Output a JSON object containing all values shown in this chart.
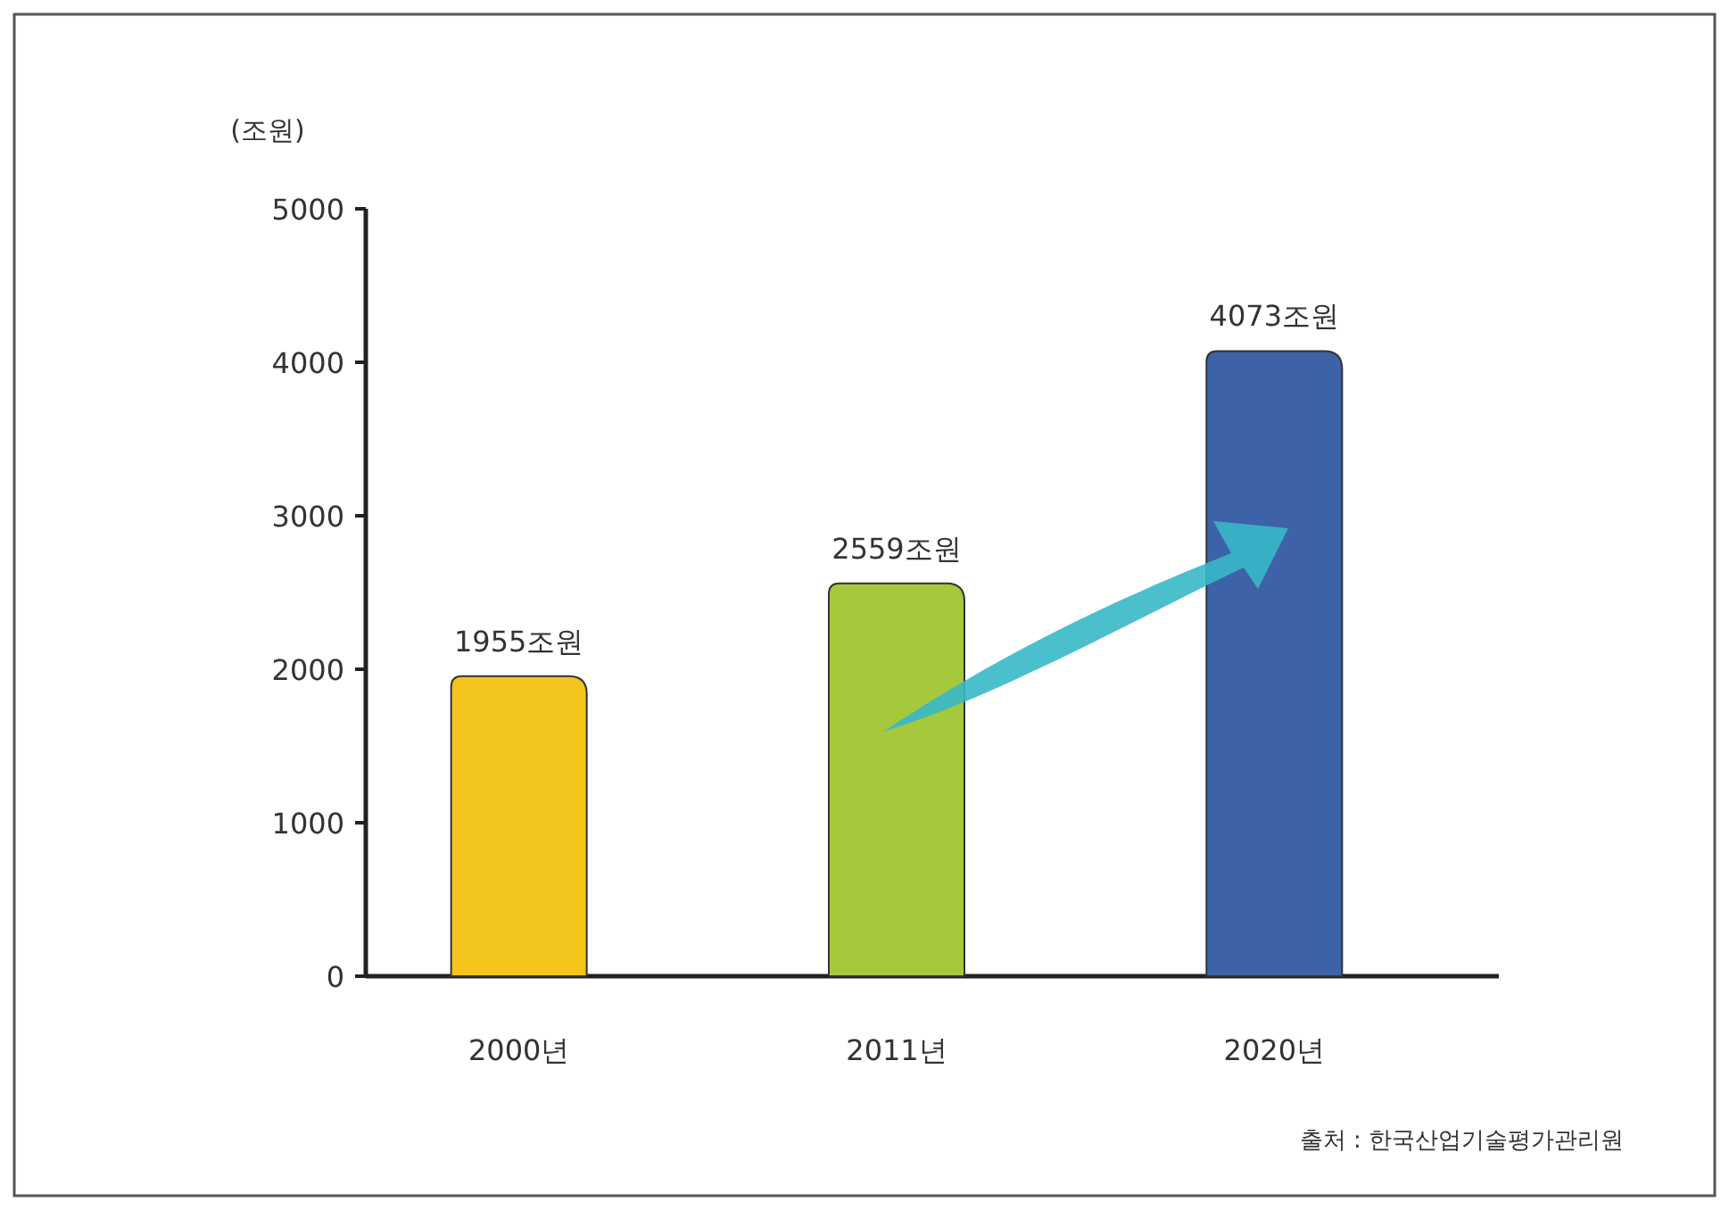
{
  "chart_data": {
    "type": "bar",
    "ylabel": "(조원)",
    "categories": [
      "2000년",
      "2011년",
      "2020년"
    ],
    "values": [
      1955,
      2559,
      4073
    ],
    "colors": [
      "#f2c41c",
      "#a6c83c",
      "#3d62a8"
    ],
    "value_labels": [
      "1955조원",
      "2559조원",
      "4073조원"
    ],
    "ylim": [
      0,
      5000
    ],
    "yticks": [
      0,
      1000,
      2000,
      3000,
      4000,
      5000
    ],
    "annotations": [
      "출처 : 한국산업기술평가관리원"
    ]
  }
}
